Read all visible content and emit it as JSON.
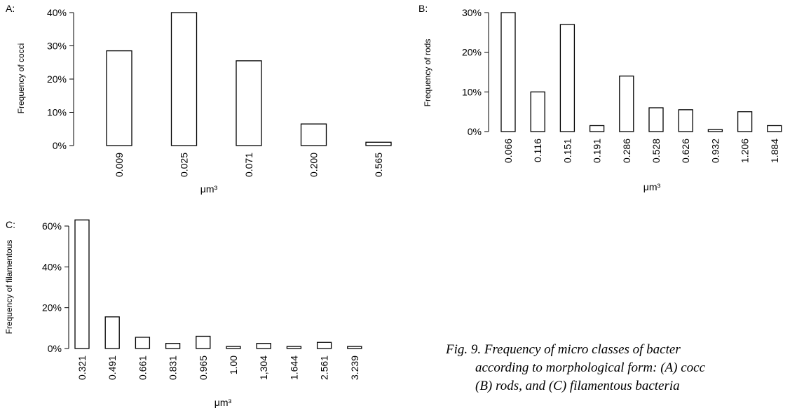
{
  "chart_data": [
    {
      "type": "bar",
      "panel_label": "A:",
      "ylabel": "Frequency of cocci",
      "xlabel": "μm³",
      "ylim": [
        0,
        40
      ],
      "yticks": [
        "0%",
        "10%",
        "20%",
        "30%",
        "40%"
      ],
      "categories": [
        "0.009",
        "0.025",
        "0.071",
        "0.200",
        "0.565"
      ],
      "values": [
        28.5,
        40,
        25.5,
        6.5,
        1
      ]
    },
    {
      "type": "bar",
      "panel_label": "B:",
      "ylabel": "Frequency of rods",
      "xlabel": "μm³",
      "ylim": [
        0,
        30
      ],
      "yticks": [
        "0%",
        "10%",
        "20%",
        "30%"
      ],
      "categories": [
        "0.066",
        "0.116",
        "0.151",
        "0.191",
        "0.286",
        "0.528",
        "0.626",
        "0.932",
        "1.206",
        "1.884"
      ],
      "values": [
        30,
        10,
        27,
        1.5,
        14,
        6,
        5.5,
        0.5,
        5,
        1.5
      ]
    },
    {
      "type": "bar",
      "panel_label": "C:",
      "ylabel": "Frequency of filamentous",
      "xlabel": "μm³",
      "ylim": [
        0,
        60
      ],
      "yticks": [
        "0%",
        "20%",
        "40%",
        "60%"
      ],
      "categories": [
        "0.321",
        "0.491",
        "0.661",
        "0.831",
        "0.965",
        "1.00",
        "1,304",
        "1.644",
        "2.561",
        "3.239"
      ],
      "values": [
        63,
        15.5,
        5.5,
        2.5,
        6,
        1,
        2.5,
        1,
        3,
        1
      ]
    }
  ],
  "caption": {
    "line1": "Fig.  9.  Frequency  of  micro  classes  of  bacter",
    "line2": "according to morphological form: (A) cocc",
    "line3": "(B) rods, and (C) filamentous bacteria"
  }
}
